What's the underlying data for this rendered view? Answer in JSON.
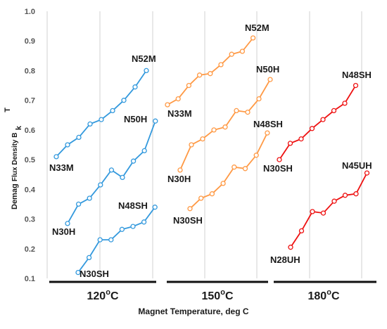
{
  "chart_data": {
    "type": "line",
    "title": "",
    "xlabel": "Magnet Temperature, deg C",
    "ylabel": {
      "prefix": "Demag",
      "main": "Flux Density B",
      "subscript": "k",
      "unit": "T"
    },
    "ylim": [
      0.1,
      1.0
    ],
    "yticks": [
      "0.1",
      "0.2",
      "0.3",
      "0.4",
      "0.5",
      "0.6",
      "0.7",
      "0.8",
      "0.9",
      "1.0"
    ],
    "grid": "vertical",
    "groups": [
      {
        "label": "120°C",
        "label_main": "120",
        "label_sup": "o",
        "label_unit": "C",
        "color": "#3399dd",
        "series": [
          {
            "name": "N33M",
            "values": [
              0.51,
              0.55,
              0.575,
              0.62,
              0.635,
              0.665,
              0.7,
              0.745,
              0.8
            ]
          },
          {
            "name": "N52M",
            "values": [
              0.51,
              0.55,
              0.575,
              0.62,
              0.635,
              0.665,
              0.7,
              0.745,
              0.8
            ]
          },
          {
            "name": "N30H",
            "values": [
              0.285,
              0.35,
              0.37,
              0.415,
              0.465,
              0.44,
              0.495,
              0.53,
              0.63
            ]
          },
          {
            "name": "N50H",
            "values": [
              0.285,
              0.35,
              0.37,
              0.415,
              0.465,
              0.44,
              0.495,
              0.53,
              0.63
            ]
          },
          {
            "name": "N30SH",
            "values": [
              0.12,
              0.17,
              0.23,
              0.23,
              0.265,
              0.275,
              0.29,
              0.34
            ]
          },
          {
            "name": "N48SH",
            "values": [
              0.12,
              0.17,
              0.23,
              0.23,
              0.265,
              0.275,
              0.29,
              0.34
            ]
          }
        ]
      },
      {
        "label": "150°C",
        "label_main": "150",
        "label_sup": "o",
        "label_unit": "C",
        "color": "#ff9944",
        "series": [
          {
            "name": "N33M",
            "values": [
              0.685,
              0.705,
              0.75,
              0.785,
              0.79,
              0.82,
              0.855,
              0.865,
              0.91
            ]
          },
          {
            "name": "N52M",
            "values": [
              0.685,
              0.705,
              0.75,
              0.785,
              0.79,
              0.82,
              0.855,
              0.865,
              0.91
            ]
          },
          {
            "name": "N30H",
            "values": [
              0.465,
              0.55,
              0.57,
              0.6,
              0.61,
              0.665,
              0.66,
              0.705,
              0.77
            ]
          },
          {
            "name": "N50H",
            "values": [
              0.465,
              0.55,
              0.57,
              0.6,
              0.61,
              0.665,
              0.66,
              0.705,
              0.77
            ]
          },
          {
            "name": "N30SH",
            "values": [
              0.335,
              0.37,
              0.385,
              0.42,
              0.475,
              0.47,
              0.515,
              0.59
            ]
          },
          {
            "name": "N48SH",
            "values": [
              0.335,
              0.37,
              0.385,
              0.42,
              0.475,
              0.47,
              0.515,
              0.59
            ]
          }
        ]
      },
      {
        "label": "180°C",
        "label_main": "180",
        "label_sup": "o",
        "label_unit": "C",
        "color": "#ee1111",
        "series": [
          {
            "name": "N30SH",
            "values": [
              0.5,
              0.555,
              0.57,
              0.605,
              0.635,
              0.665,
              0.69,
              0.75
            ]
          },
          {
            "name": "N48SH",
            "values": [
              0.5,
              0.555,
              0.57,
              0.605,
              0.635,
              0.665,
              0.69,
              0.75
            ]
          },
          {
            "name": "N28UH",
            "values": [
              0.205,
              0.26,
              0.325,
              0.32,
              0.36,
              0.38,
              0.385,
              0.455
            ]
          },
          {
            "name": "N45UH",
            "values": [
              0.205,
              0.26,
              0.325,
              0.32,
              0.36,
              0.38,
              0.385,
              0.455
            ]
          }
        ]
      }
    ]
  }
}
